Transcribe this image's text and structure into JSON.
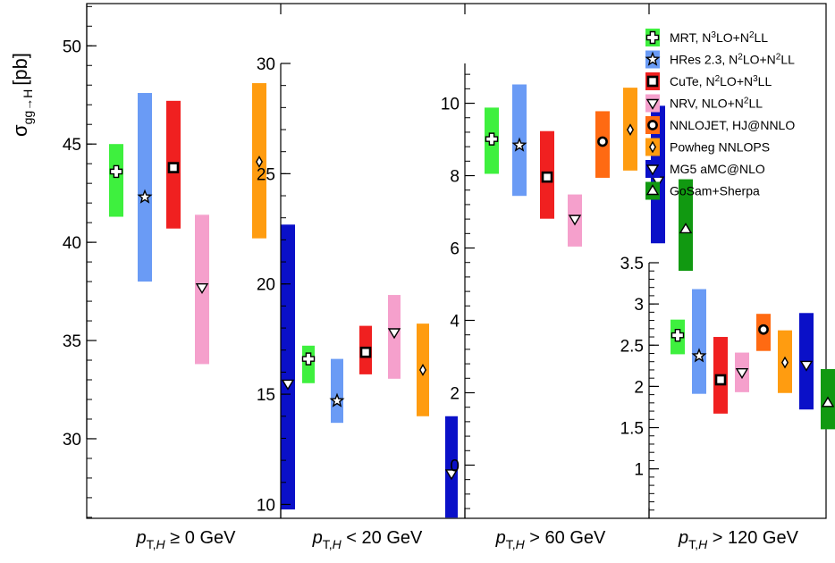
{
  "colors": {
    "MRT": "#3ef03e",
    "HRes": "#6a9bf5",
    "CuTe": "#f02020",
    "NRV": "#f5a0cc",
    "NNLOJET": "#ff6a12",
    "Powheg": "#ff9c10",
    "MG5": "#0a10c8",
    "GoSam": "#119911"
  },
  "chart_data": {
    "type": "bar",
    "ylabel_main": "σ",
    "ylabel_sub": "gg→H",
    "ylabel_unit": "[pb]",
    "legend_position": "top-right",
    "legend": [
      {
        "key": "MRT",
        "pre": "MRT, N",
        "sup1": "3",
        "mid": "LO+N",
        "sup2": "2",
        "post": "LL",
        "marker": "cross"
      },
      {
        "key": "HRes",
        "pre": "HRes 2.3, N",
        "sup1": "2",
        "mid": "LO+N",
        "sup2": "2",
        "post": "LL",
        "marker": "star"
      },
      {
        "key": "CuTe",
        "pre": "CuTe, N",
        "sup1": "2",
        "mid": "LO+N",
        "sup2": "3",
        "post": "LL",
        "marker": "square"
      },
      {
        "key": "NRV",
        "pre": "NRV, NLO+N",
        "sup1": "2",
        "mid": "LL",
        "sup2": "",
        "post": "",
        "marker": "tridown"
      },
      {
        "key": "NNLOJET",
        "pre": "NNLOJET, HJ@NNLO",
        "sup1": "",
        "mid": "",
        "sup2": "",
        "post": "",
        "marker": "circle"
      },
      {
        "key": "Powheg",
        "pre": "Powheg NNLOPS",
        "sup1": "",
        "mid": "",
        "sup2": "",
        "post": "",
        "marker": "diamond"
      },
      {
        "key": "MG5",
        "pre": "MG5 aMC@NLO",
        "sup1": "",
        "mid": "",
        "sup2": "",
        "post": "",
        "marker": "tridown"
      },
      {
        "key": "GoSam",
        "pre": "GoSam+Sherpa",
        "sup1": "",
        "mid": "",
        "sup2": "",
        "post": "",
        "marker": "triup"
      }
    ],
    "panels": [
      {
        "id": "pt0",
        "label_pre": "p",
        "label_sub": "T,H",
        "label_post": " ≥ 0 GeV",
        "ylim": [
          25.95,
          52.15
        ],
        "ticks": [
          30,
          35,
          40,
          45,
          50
        ],
        "entries": [
          {
            "key": "MRT",
            "low": 41.3,
            "high": 45.0,
            "central": 43.6
          },
          {
            "key": "HRes",
            "low": 38.0,
            "high": 47.6,
            "central": 42.3
          },
          {
            "key": "CuTe",
            "low": 40.7,
            "high": 47.2,
            "central": 43.8
          },
          {
            "key": "NRV",
            "low": 33.8,
            "high": 41.4,
            "central": 37.7
          },
          {
            "key": "Powheg",
            "low": 40.2,
            "high": 48.1,
            "central": 44.1
          },
          {
            "key": "MG5",
            "low": 26.4,
            "high": 40.9,
            "central": 32.8
          }
        ]
      },
      {
        "id": "pt20",
        "label_pre": "p",
        "label_sub": "T,H",
        "label_post": " < 20 GeV",
        "ylim": [
          9.37,
          30.0
        ],
        "ticks": [
          10,
          15,
          20,
          25,
          30
        ],
        "entries": [
          {
            "key": "MRT",
            "low": 15.5,
            "high": 17.2,
            "central": 16.6
          },
          {
            "key": "HRes",
            "low": 13.7,
            "high": 16.6,
            "central": 14.7
          },
          {
            "key": "CuTe",
            "low": 15.9,
            "high": 18.1,
            "central": 16.9
          },
          {
            "key": "NRV",
            "low": 15.7,
            "high": 19.5,
            "central": 17.8
          },
          {
            "key": "Powheg",
            "low": 14.0,
            "high": 18.2,
            "central": 16.1
          },
          {
            "key": "MG5",
            "low": 9.4,
            "high": 14.0,
            "central": 11.4
          }
        ]
      },
      {
        "id": "pt60",
        "label_pre": "p",
        "label_sub": "T,H",
        "label_post": " > 60 GeV",
        "ylim": [
          -1.47,
          11.1
        ],
        "ticks": [
          0,
          2,
          4,
          6,
          8,
          10
        ],
        "entries": [
          {
            "key": "MRT",
            "low": 8.05,
            "high": 9.88,
            "central": 9.01
          },
          {
            "key": "HRes",
            "low": 7.44,
            "high": 10.52,
            "central": 8.84
          },
          {
            "key": "CuTe",
            "low": 6.81,
            "high": 9.23,
            "central": 7.96
          },
          {
            "key": "NRV",
            "low": 6.04,
            "high": 7.48,
            "central": 6.8
          },
          {
            "key": "NNLOJET",
            "low": 7.94,
            "high": 9.78,
            "central": 8.94
          },
          {
            "key": "Powheg",
            "low": 8.14,
            "high": 10.43,
            "central": 9.27
          },
          {
            "key": "MG5",
            "low": 6.13,
            "high": 9.93,
            "central": 7.86
          },
          {
            "key": "GoSam",
            "low": 5.37,
            "high": 7.9,
            "central": 6.52
          }
        ]
      },
      {
        "id": "pt120",
        "label_pre": "p",
        "label_sub": "T,H",
        "label_post": " > 120 GeV",
        "ylim": [
          0.4,
          3.5
        ],
        "ticks": [
          1,
          1.5,
          2,
          2.5,
          3,
          3.5
        ],
        "entries": [
          {
            "key": "MRT",
            "low": 2.39,
            "high": 2.81,
            "central": 2.62
          },
          {
            "key": "HRes",
            "low": 1.91,
            "high": 3.18,
            "central": 2.37
          },
          {
            "key": "CuTe",
            "low": 1.67,
            "high": 2.6,
            "central": 2.08
          },
          {
            "key": "NRV",
            "low": 1.93,
            "high": 2.41,
            "central": 2.17
          },
          {
            "key": "NNLOJET",
            "low": 2.43,
            "high": 2.88,
            "central": 2.69
          },
          {
            "key": "Powheg",
            "low": 1.92,
            "high": 2.68,
            "central": 2.29
          },
          {
            "key": "MG5",
            "low": 1.72,
            "high": 2.89,
            "central": 2.26
          },
          {
            "key": "GoSam",
            "low": 1.48,
            "high": 2.21,
            "central": 1.8
          }
        ]
      }
    ]
  }
}
